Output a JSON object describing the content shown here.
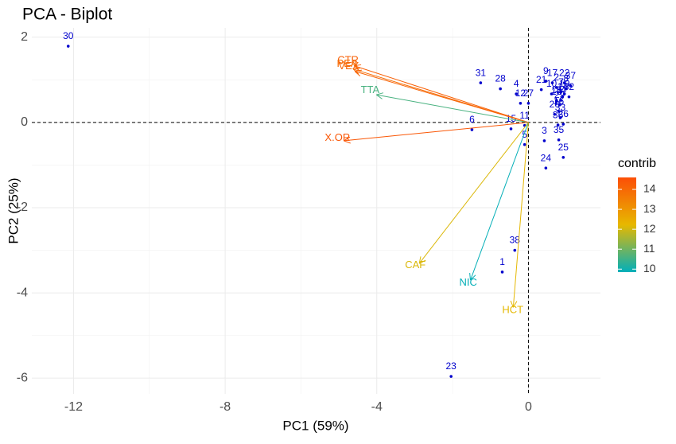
{
  "chart_data": {
    "type": "biplot",
    "title": "PCA - Biplot",
    "x_label": "PC1 (59%)",
    "y_label": "PC2 (25%)",
    "xlim": [
      -13.1,
      1.9
    ],
    "ylim": [
      -6.37,
      2.22
    ],
    "xticks": [
      -12,
      -8,
      -4,
      0
    ],
    "yticks": [
      2,
      0,
      -2,
      -4,
      -6
    ],
    "x_minor_grid": [
      -10,
      -6,
      -2
    ],
    "y_minor_grid": [
      1,
      -1,
      -3,
      -5
    ],
    "hline": 0,
    "vline": 0,
    "grid": true,
    "individuals": {
      "color": "#0000CD",
      "labels": [
        "30",
        "31",
        "28",
        "4",
        "12",
        "27",
        "15",
        "11",
        "5",
        "6",
        "3",
        "35",
        "25",
        "24",
        "38",
        "1",
        "23",
        "9",
        "17",
        "21",
        "22",
        "37",
        "2",
        "7",
        "8",
        "10",
        "13",
        "14",
        "16",
        "18",
        "19",
        "20",
        "26",
        "29",
        "32",
        "33",
        "34",
        "36"
      ],
      "x": [
        -12.14,
        -1.26,
        -0.74,
        -0.32,
        -0.21,
        0,
        -0.46,
        -0.1,
        -0.1,
        -1.49,
        0.42,
        0.8,
        0.92,
        0.46,
        -0.36,
        -0.69,
        -2.04,
        0.46,
        0.63,
        0.34,
        0.95,
        1.11,
        0.74,
        0.86,
        0.99,
        0.61,
        0.74,
        0.9,
        0.8,
        0.74,
        0.95,
        0.69,
        0.92,
        0.82,
        1.07,
        0.84,
        0.86,
        0.78
      ],
      "y": [
        1.79,
        0.93,
        0.79,
        0.67,
        0.45,
        0.45,
        -0.15,
        -0.07,
        -0.52,
        -0.17,
        -0.43,
        -0.41,
        -0.82,
        -1.07,
        -3.0,
        -3.51,
        -5.96,
        0.97,
        0.93,
        0.77,
        0.93,
        0.86,
        0.82,
        0.71,
        0.79,
        0.67,
        0.52,
        0.6,
        0.26,
        0.49,
        0.67,
        0.19,
        -0.04,
        0.41,
        0.6,
        0.11,
        0.52,
        -0.06
      ]
    },
    "variables": [
      {
        "name": "CTR",
        "x": -4.6,
        "y": 1.33,
        "contrib": 14.2
      },
      {
        "name": "PEA",
        "x": -4.62,
        "y": 1.25,
        "contrib": 13.9
      },
      {
        "name": "VEX",
        "x": -4.58,
        "y": 1.2,
        "contrib": 14.1
      },
      {
        "name": "TTA",
        "x": -4.01,
        "y": 0.65,
        "contrib": 10.6
      },
      {
        "name": "X.OR",
        "x": -4.87,
        "y": -0.43,
        "contrib": 14.4
      },
      {
        "name": "CAF",
        "x": -2.88,
        "y": -3.31,
        "contrib": 12.1
      },
      {
        "name": "NIC",
        "x": -1.53,
        "y": -3.7,
        "contrib": 9.9
      },
      {
        "name": "HCT",
        "x": -0.4,
        "y": -4.34,
        "contrib": 12.2
      }
    ],
    "legend_title": "contrib",
    "colorbar_lim": [
      9.85,
      14.6
    ],
    "colorbar_ticks": [
      10,
      11,
      12,
      13,
      14
    ],
    "gradient_colors": [
      "#00AFBB",
      "#E7B800",
      "#FC4E07"
    ]
  }
}
